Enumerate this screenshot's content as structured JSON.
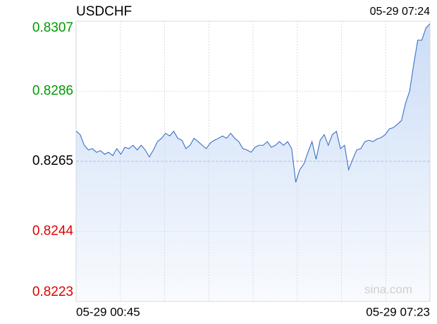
{
  "chart_data": {
    "type": "line",
    "title": "USDCHF",
    "update_time": "05-29 07:24",
    "watermark": "sina.com",
    "categories": [
      "05-29 00:45",
      null,
      null,
      null,
      null,
      null,
      null,
      null,
      null,
      null,
      null,
      null,
      null,
      null,
      null,
      null,
      null,
      null,
      null,
      null,
      null,
      null,
      null,
      null,
      null,
      null,
      null,
      null,
      null,
      null,
      null,
      null,
      null,
      null,
      null,
      null,
      null,
      null,
      null,
      null,
      null,
      null,
      null,
      null,
      null,
      null,
      null,
      null,
      null,
      null,
      null,
      null,
      null,
      null,
      null,
      null,
      null,
      null,
      null,
      null,
      null,
      null,
      null,
      null,
      null,
      null,
      null,
      null,
      null,
      null,
      null,
      null,
      null,
      null,
      null,
      null,
      null,
      null,
      null,
      null,
      null,
      null,
      null,
      null,
      null,
      null,
      null,
      "05-29 07:23"
    ],
    "series": [
      {
        "name": "USDCHF",
        "color": "#3b6fc6",
        "values": [
          0.8274,
          0.8273,
          0.82698,
          0.82684,
          0.82688,
          0.82677,
          0.82682,
          0.82671,
          0.82677,
          0.82667,
          0.82688,
          0.82671,
          0.82692,
          0.82688,
          0.82698,
          0.82684,
          0.82698,
          0.82684,
          0.82663,
          0.82684,
          0.82709,
          0.82719,
          0.82734,
          0.82726,
          0.8274,
          0.82719,
          0.82713,
          0.82688,
          0.82698,
          0.82719,
          0.82709,
          0.82698,
          0.82688,
          0.82705,
          0.82713,
          0.82719,
          0.82726,
          0.82719,
          0.82734,
          0.82719,
          0.82709,
          0.82688,
          0.82684,
          0.82677,
          0.82692,
          0.82698,
          0.82698,
          0.82709,
          0.82692,
          0.82698,
          0.82709,
          0.82698,
          0.82709,
          0.82688,
          0.82587,
          0.82625,
          0.82642,
          0.82677,
          0.82709,
          0.82656,
          0.82713,
          0.8273,
          0.82698,
          0.8273,
          0.8274,
          0.82688,
          0.82698,
          0.82625,
          0.82656,
          0.82684,
          0.82688,
          0.82709,
          0.82713,
          0.82709,
          0.82717,
          0.82721,
          0.8273,
          0.82747,
          0.82751,
          0.82761,
          0.82772,
          0.82824,
          0.8286,
          0.8294,
          0.83013,
          0.83013,
          0.83049,
          0.83062
        ]
      }
    ],
    "ylim": [
      0.8223,
      0.8307
    ],
    "yticks": [
      0.8223,
      0.8244,
      0.8265,
      0.8286,
      0.8307
    ],
    "ytick_colors": [
      "#dd0000",
      "#dd0000",
      "#000000",
      "#009900",
      "#009900"
    ],
    "area_color": "#c9dbf6",
    "grid": true
  }
}
